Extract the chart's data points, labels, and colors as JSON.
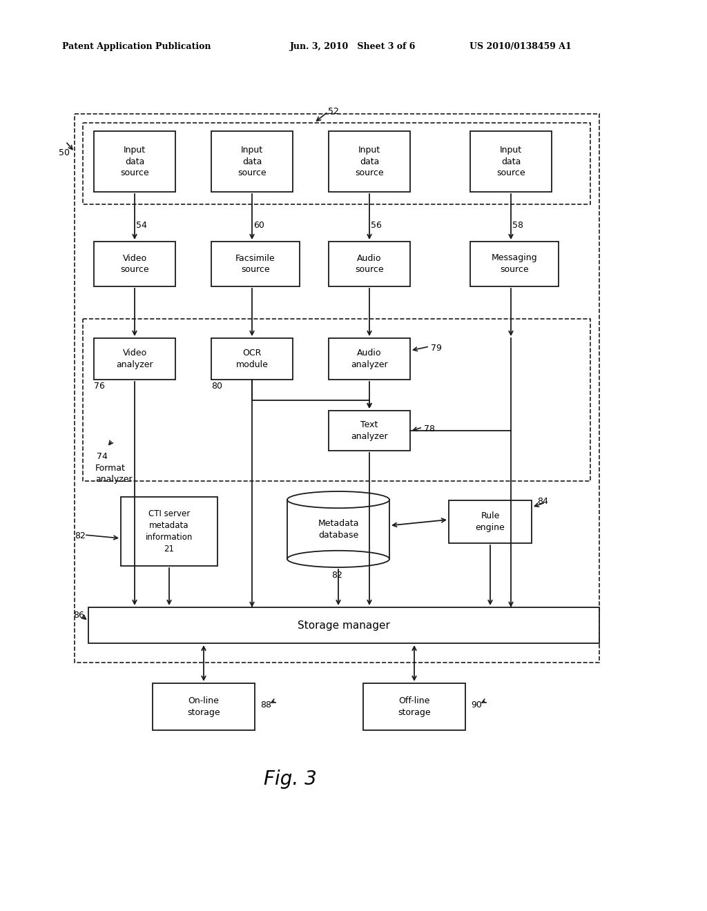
{
  "bg_color": "#ffffff",
  "header_left": "Patent Application Publication",
  "header_mid": "Jun. 3, 2010   Sheet 3 of 6",
  "header_right": "US 2010/0138459 A1",
  "fig_label": "Fig. 3"
}
